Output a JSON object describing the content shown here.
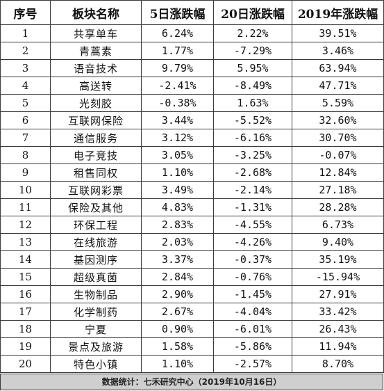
{
  "table": {
    "headers": [
      "序号",
      "板块名称",
      "5日涨跌幅",
      "20日涨跌幅",
      "2019年涨跌幅"
    ],
    "rows": [
      {
        "idx": "1",
        "name": "共享单车",
        "d5": "6.24%",
        "d20": "2.22%",
        "ytd": "39.51%"
      },
      {
        "idx": "2",
        "name": "青蒿素",
        "d5": "1.77%",
        "d20": "-7.29%",
        "ytd": "3.46%"
      },
      {
        "idx": "3",
        "name": "语音技术",
        "d5": "9.79%",
        "d20": "5.95%",
        "ytd": "63.94%"
      },
      {
        "idx": "4",
        "name": "高送转",
        "d5": "-2.41%",
        "d20": "-8.49%",
        "ytd": "47.71%"
      },
      {
        "idx": "5",
        "name": "光刻胶",
        "d5": "-0.38%",
        "d20": "1.63%",
        "ytd": "5.59%"
      },
      {
        "idx": "6",
        "name": "互联网保险",
        "d5": "3.44%",
        "d20": "-5.52%",
        "ytd": "32.60%"
      },
      {
        "idx": "7",
        "name": "通信服务",
        "d5": "3.12%",
        "d20": "-6.16%",
        "ytd": "30.70%"
      },
      {
        "idx": "8",
        "name": "电子竞技",
        "d5": "3.05%",
        "d20": "-3.25%",
        "ytd": "-0.07%"
      },
      {
        "idx": "9",
        "name": "租售同权",
        "d5": "1.10%",
        "d20": "-2.68%",
        "ytd": "12.84%"
      },
      {
        "idx": "10",
        "name": "互联网彩票",
        "d5": "3.49%",
        "d20": "-2.14%",
        "ytd": "27.18%"
      },
      {
        "idx": "11",
        "name": "保险及其他",
        "d5": "4.83%",
        "d20": "-1.31%",
        "ytd": "28.28%"
      },
      {
        "idx": "12",
        "name": "环保工程",
        "d5": "2.83%",
        "d20": "-4.55%",
        "ytd": "6.73%"
      },
      {
        "idx": "13",
        "name": "在线旅游",
        "d5": "2.03%",
        "d20": "-4.26%",
        "ytd": "9.40%"
      },
      {
        "idx": "14",
        "name": "基因测序",
        "d5": "3.37%",
        "d20": "-0.37%",
        "ytd": "35.19%"
      },
      {
        "idx": "15",
        "name": "超级真菌",
        "d5": "2.84%",
        "d20": "-0.76%",
        "ytd": "-15.94%"
      },
      {
        "idx": "16",
        "name": "生物制品",
        "d5": "2.90%",
        "d20": "-1.45%",
        "ytd": "27.91%"
      },
      {
        "idx": "17",
        "name": "化学制药",
        "d5": "2.67%",
        "d20": "-4.04%",
        "ytd": "33.42%"
      },
      {
        "idx": "18",
        "name": "宁夏",
        "d5": "0.90%",
        "d20": "-6.01%",
        "ytd": "26.43%"
      },
      {
        "idx": "19",
        "name": "景点及旅游",
        "d5": "1.58%",
        "d20": "-5.86%",
        "ytd": "11.94%"
      },
      {
        "idx": "20",
        "name": "特色小镇",
        "d5": "1.10%",
        "d20": "-2.57%",
        "ytd": "8.70%"
      }
    ]
  },
  "footer": {
    "text": "数据统计：七禾研究中心（2019年10月16日）"
  },
  "colors": {
    "footer_bg": "#cfcfcf",
    "border": "#3a3a3a"
  }
}
